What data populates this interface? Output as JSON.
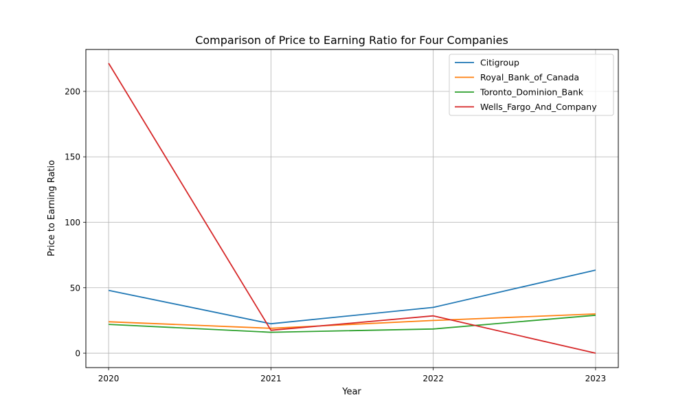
{
  "chart_data": {
    "type": "line",
    "title": "Comparison of Price to Earning Ratio for Four Companies",
    "xlabel": "Year",
    "ylabel": "Price to Earning Ratio",
    "x": [
      2020,
      2021,
      2022,
      2023
    ],
    "xtick_labels": [
      "2020",
      "2021",
      "2022",
      "2023"
    ],
    "yticks": [
      0,
      50,
      100,
      150,
      200
    ],
    "ytick_labels": [
      "0",
      "50",
      "100",
      "150",
      "200"
    ],
    "ylim": [
      -11,
      232
    ],
    "xlim": [
      2019.86,
      2023.14
    ],
    "grid": true,
    "legend_position": "top-right",
    "series": [
      {
        "name": "Citigroup",
        "color": "#1f77b4",
        "values": [
          48,
          22.5,
          35,
          63.5
        ]
      },
      {
        "name": "Royal_Bank_of_Canada",
        "color": "#ff7f0e",
        "values": [
          24,
          19,
          25,
          30
        ]
      },
      {
        "name": "Toronto_Dominion_Bank",
        "color": "#2ca02c",
        "values": [
          22,
          16,
          18.5,
          29
        ]
      },
      {
        "name": "Wells_Fargo_And_Company",
        "color": "#d62728",
        "values": [
          221.5,
          17.5,
          28.5,
          0
        ]
      }
    ]
  }
}
